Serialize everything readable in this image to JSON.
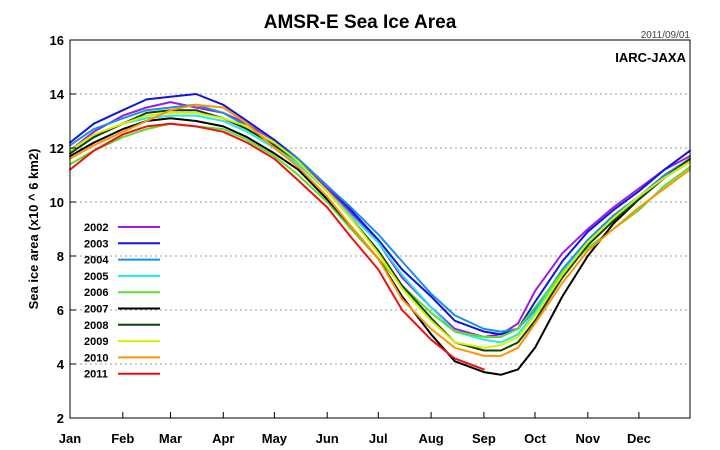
{
  "chart_data": {
    "type": "line",
    "title": "AMSR-E Sea Ice Area",
    "date_stamp": "2011/09/01",
    "source": "IARC-JAXA",
    "ylabel": "Sea ice area (x10 ^ 6 km2)",
    "xlabel": "",
    "ylim": [
      2,
      16
    ],
    "yticks": [
      2,
      4,
      6,
      8,
      10,
      12,
      14,
      16
    ],
    "x_range": [
      1,
      365
    ],
    "months": [
      "Jan",
      "Feb",
      "Mar",
      "Apr",
      "May",
      "Jun",
      "Jul",
      "Aug",
      "Sep",
      "Oct",
      "Nov",
      "Dec"
    ],
    "month_starts": [
      1,
      32,
      60,
      91,
      121,
      152,
      182,
      213,
      244,
      274,
      305,
      335
    ],
    "grid": "horizontal dotted",
    "legend_position": "left",
    "series": [
      {
        "name": "2002",
        "color": "#9b1fe0",
        "x": [
          1,
          15,
          32,
          46,
          60,
          75,
          91,
          105,
          121,
          135,
          152,
          166,
          182,
          196,
          213,
          227,
          244,
          254,
          264,
          274,
          290,
          305,
          320,
          335,
          350,
          365
        ],
        "values": [
          11.9,
          12.6,
          13.2,
          13.5,
          13.7,
          13.5,
          13.3,
          12.9,
          12.2,
          11.5,
          10.5,
          9.6,
          8.5,
          7.2,
          6.1,
          5.3,
          5.0,
          5.1,
          5.5,
          6.7,
          8.1,
          9.0,
          9.8,
          10.5,
          11.2,
          11.7
        ]
      },
      {
        "name": "2003",
        "color": "#1414d8",
        "x": [
          1,
          15,
          32,
          46,
          60,
          75,
          91,
          105,
          121,
          135,
          152,
          166,
          182,
          196,
          213,
          227,
          244,
          254,
          264,
          274,
          290,
          305,
          320,
          335,
          350,
          365
        ],
        "values": [
          12.2,
          12.9,
          13.4,
          13.8,
          13.9,
          14.0,
          13.6,
          13.0,
          12.3,
          11.6,
          10.6,
          9.7,
          8.6,
          7.5,
          6.5,
          5.6,
          5.2,
          5.1,
          5.3,
          6.3,
          7.8,
          8.9,
          9.7,
          10.4,
          11.2,
          11.9
        ]
      },
      {
        "name": "2004",
        "color": "#1a8fe6",
        "x": [
          1,
          15,
          32,
          46,
          60,
          75,
          91,
          105,
          121,
          135,
          152,
          166,
          182,
          196,
          213,
          227,
          244,
          254,
          264,
          274,
          290,
          305,
          320,
          335,
          350,
          365
        ],
        "values": [
          12.1,
          12.7,
          13.1,
          13.4,
          13.5,
          13.6,
          13.3,
          12.8,
          12.2,
          11.6,
          10.6,
          9.8,
          8.8,
          7.8,
          6.6,
          5.8,
          5.3,
          5.2,
          5.3,
          6.0,
          7.5,
          8.6,
          9.5,
          10.2,
          11.0,
          11.6
        ]
      },
      {
        "name": "2005",
        "color": "#22e8e8",
        "x": [
          1,
          15,
          32,
          46,
          60,
          75,
          91,
          105,
          121,
          135,
          152,
          166,
          182,
          196,
          213,
          227,
          244,
          254,
          264,
          274,
          290,
          305,
          320,
          335,
          350,
          365
        ],
        "values": [
          11.8,
          12.4,
          12.9,
          13.1,
          13.2,
          13.2,
          13.0,
          12.6,
          12.0,
          11.4,
          10.4,
          9.5,
          8.5,
          7.3,
          6.1,
          5.2,
          4.9,
          4.8,
          5.1,
          5.9,
          7.4,
          8.5,
          9.4,
          10.1,
          10.9,
          11.5
        ]
      },
      {
        "name": "2006",
        "color": "#5cdc2c",
        "x": [
          1,
          15,
          32,
          46,
          60,
          75,
          91,
          105,
          121,
          135,
          152,
          166,
          182,
          196,
          213,
          227,
          244,
          254,
          264,
          274,
          290,
          305,
          320,
          335,
          350,
          365
        ],
        "values": [
          11.4,
          11.9,
          12.4,
          12.7,
          12.9,
          12.8,
          12.7,
          12.3,
          11.7,
          11.0,
          10.0,
          9.0,
          7.9,
          6.9,
          5.9,
          5.2,
          5.0,
          5.0,
          5.3,
          6.1,
          7.4,
          8.3,
          9.0,
          9.7,
          10.6,
          11.3
        ]
      },
      {
        "name": "2007",
        "color": "#000000",
        "x": [
          1,
          15,
          32,
          46,
          60,
          75,
          91,
          105,
          121,
          135,
          152,
          166,
          182,
          196,
          213,
          227,
          244,
          254,
          264,
          274,
          290,
          305,
          320,
          335,
          350,
          365
        ],
        "values": [
          11.7,
          12.2,
          12.7,
          13.0,
          13.1,
          13.0,
          12.8,
          12.4,
          11.8,
          11.2,
          10.1,
          9.1,
          7.9,
          6.5,
          5.1,
          4.1,
          3.7,
          3.6,
          3.8,
          4.6,
          6.5,
          8.0,
          9.2,
          10.1,
          10.9,
          11.5
        ]
      },
      {
        "name": "2008",
        "color": "#10400a",
        "x": [
          1,
          15,
          32,
          46,
          60,
          75,
          91,
          105,
          121,
          135,
          152,
          166,
          182,
          196,
          213,
          227,
          244,
          254,
          264,
          274,
          290,
          305,
          320,
          335,
          350,
          365
        ],
        "values": [
          11.8,
          12.4,
          12.9,
          13.3,
          13.4,
          13.4,
          13.1,
          12.7,
          12.1,
          11.5,
          10.4,
          9.4,
          8.2,
          6.9,
          5.7,
          4.8,
          4.5,
          4.5,
          4.8,
          5.6,
          7.2,
          8.4,
          9.3,
          10.1,
          10.9,
          11.6
        ]
      },
      {
        "name": "2009",
        "color": "#d6f000",
        "x": [
          1,
          15,
          32,
          46,
          60,
          75,
          91,
          105,
          121,
          135,
          152,
          166,
          182,
          196,
          213,
          227,
          244,
          254,
          264,
          274,
          290,
          305,
          320,
          335,
          350,
          365
        ],
        "values": [
          11.9,
          12.5,
          12.9,
          13.2,
          13.3,
          13.3,
          13.1,
          12.8,
          12.2,
          11.5,
          10.4,
          9.4,
          8.1,
          6.8,
          5.6,
          4.8,
          4.6,
          4.7,
          5.0,
          5.8,
          7.3,
          8.5,
          9.4,
          10.2,
          10.9,
          11.5
        ]
      },
      {
        "name": "2010",
        "color": "#ff9400",
        "x": [
          1,
          15,
          32,
          46,
          60,
          75,
          91,
          105,
          121,
          135,
          152,
          166,
          182,
          196,
          213,
          227,
          244,
          254,
          264,
          274,
          290,
          305,
          320,
          335,
          350,
          365
        ],
        "values": [
          11.6,
          12.1,
          12.6,
          13.0,
          13.4,
          13.6,
          13.5,
          12.9,
          12.0,
          11.3,
          10.2,
          9.1,
          7.9,
          6.4,
          5.3,
          4.6,
          4.3,
          4.3,
          4.6,
          5.5,
          7.0,
          8.2,
          9.0,
          9.8,
          10.5,
          11.2
        ]
      },
      {
        "name": "2011",
        "color": "#ee1111",
        "x": [
          1,
          15,
          32,
          46,
          60,
          75,
          91,
          105,
          121,
          135,
          152,
          166,
          182,
          196,
          213,
          227,
          244
        ],
        "values": [
          11.2,
          11.9,
          12.5,
          12.8,
          12.9,
          12.8,
          12.6,
          12.2,
          11.6,
          10.8,
          9.8,
          8.7,
          7.5,
          6.0,
          4.9,
          4.2,
          3.8
        ]
      }
    ]
  }
}
